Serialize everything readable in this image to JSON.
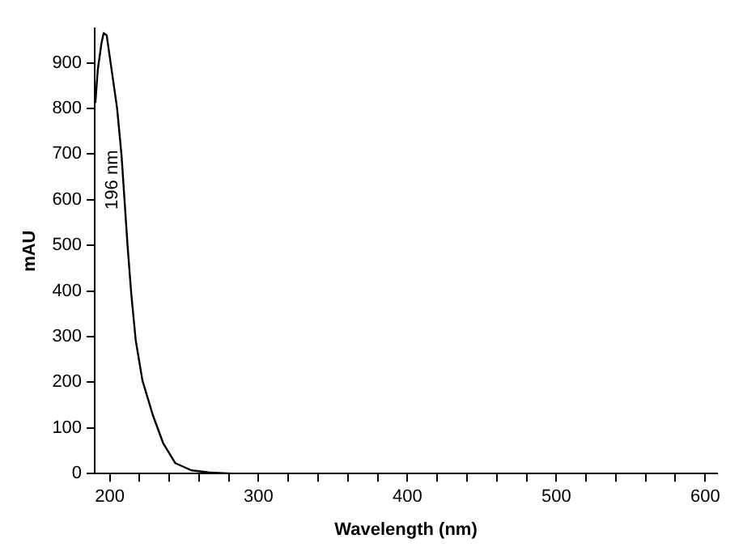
{
  "chart_data": {
    "type": "line",
    "xlabel": "Wavelength (nm)",
    "ylabel": "mAU",
    "series": [
      {
        "color": "#000000",
        "x": [
          190.4,
          192,
          194.5,
          196,
          198,
          205,
          208,
          210,
          212,
          214.5,
          217.5,
          222,
          229,
          236,
          244,
          255,
          268,
          282
        ],
        "values": [
          812,
          884,
          943,
          965,
          960,
          800,
          696,
          598,
          500,
          394,
          292,
          204,
          128,
          66,
          23,
          7,
          2,
          0
        ]
      }
    ],
    "xlim": [
      190,
      608
    ],
    "xticks": [
      200,
      {
        "value": 220,
        "label": null
      },
      {
        "value": 240,
        "label": null
      },
      {
        "value": 260,
        "label": null
      },
      {
        "value": 280,
        "label": null
      },
      300,
      {
        "value": 320,
        "label": null
      },
      {
        "value": 340,
        "label": null
      },
      {
        "value": 360,
        "label": null
      },
      {
        "value": 380,
        "label": null
      },
      400,
      {
        "value": 420,
        "label": null
      },
      {
        "value": 440,
        "label": null
      },
      {
        "value": 460,
        "label": null
      },
      {
        "value": 480,
        "label": null
      },
      500,
      {
        "value": 520,
        "label": null
      },
      {
        "value": 540,
        "label": null
      },
      {
        "value": 560,
        "label": null
      },
      {
        "value": 580,
        "label": null
      },
      600
    ],
    "ylim": [
      0,
      975
    ],
    "yticks": [
      0,
      100,
      200,
      300,
      400,
      500,
      600,
      700,
      800,
      900
    ],
    "annotations": [
      "196 nm"
    ],
    "grid": false,
    "legend": false,
    "marker": "none",
    "line_style": "solid"
  }
}
